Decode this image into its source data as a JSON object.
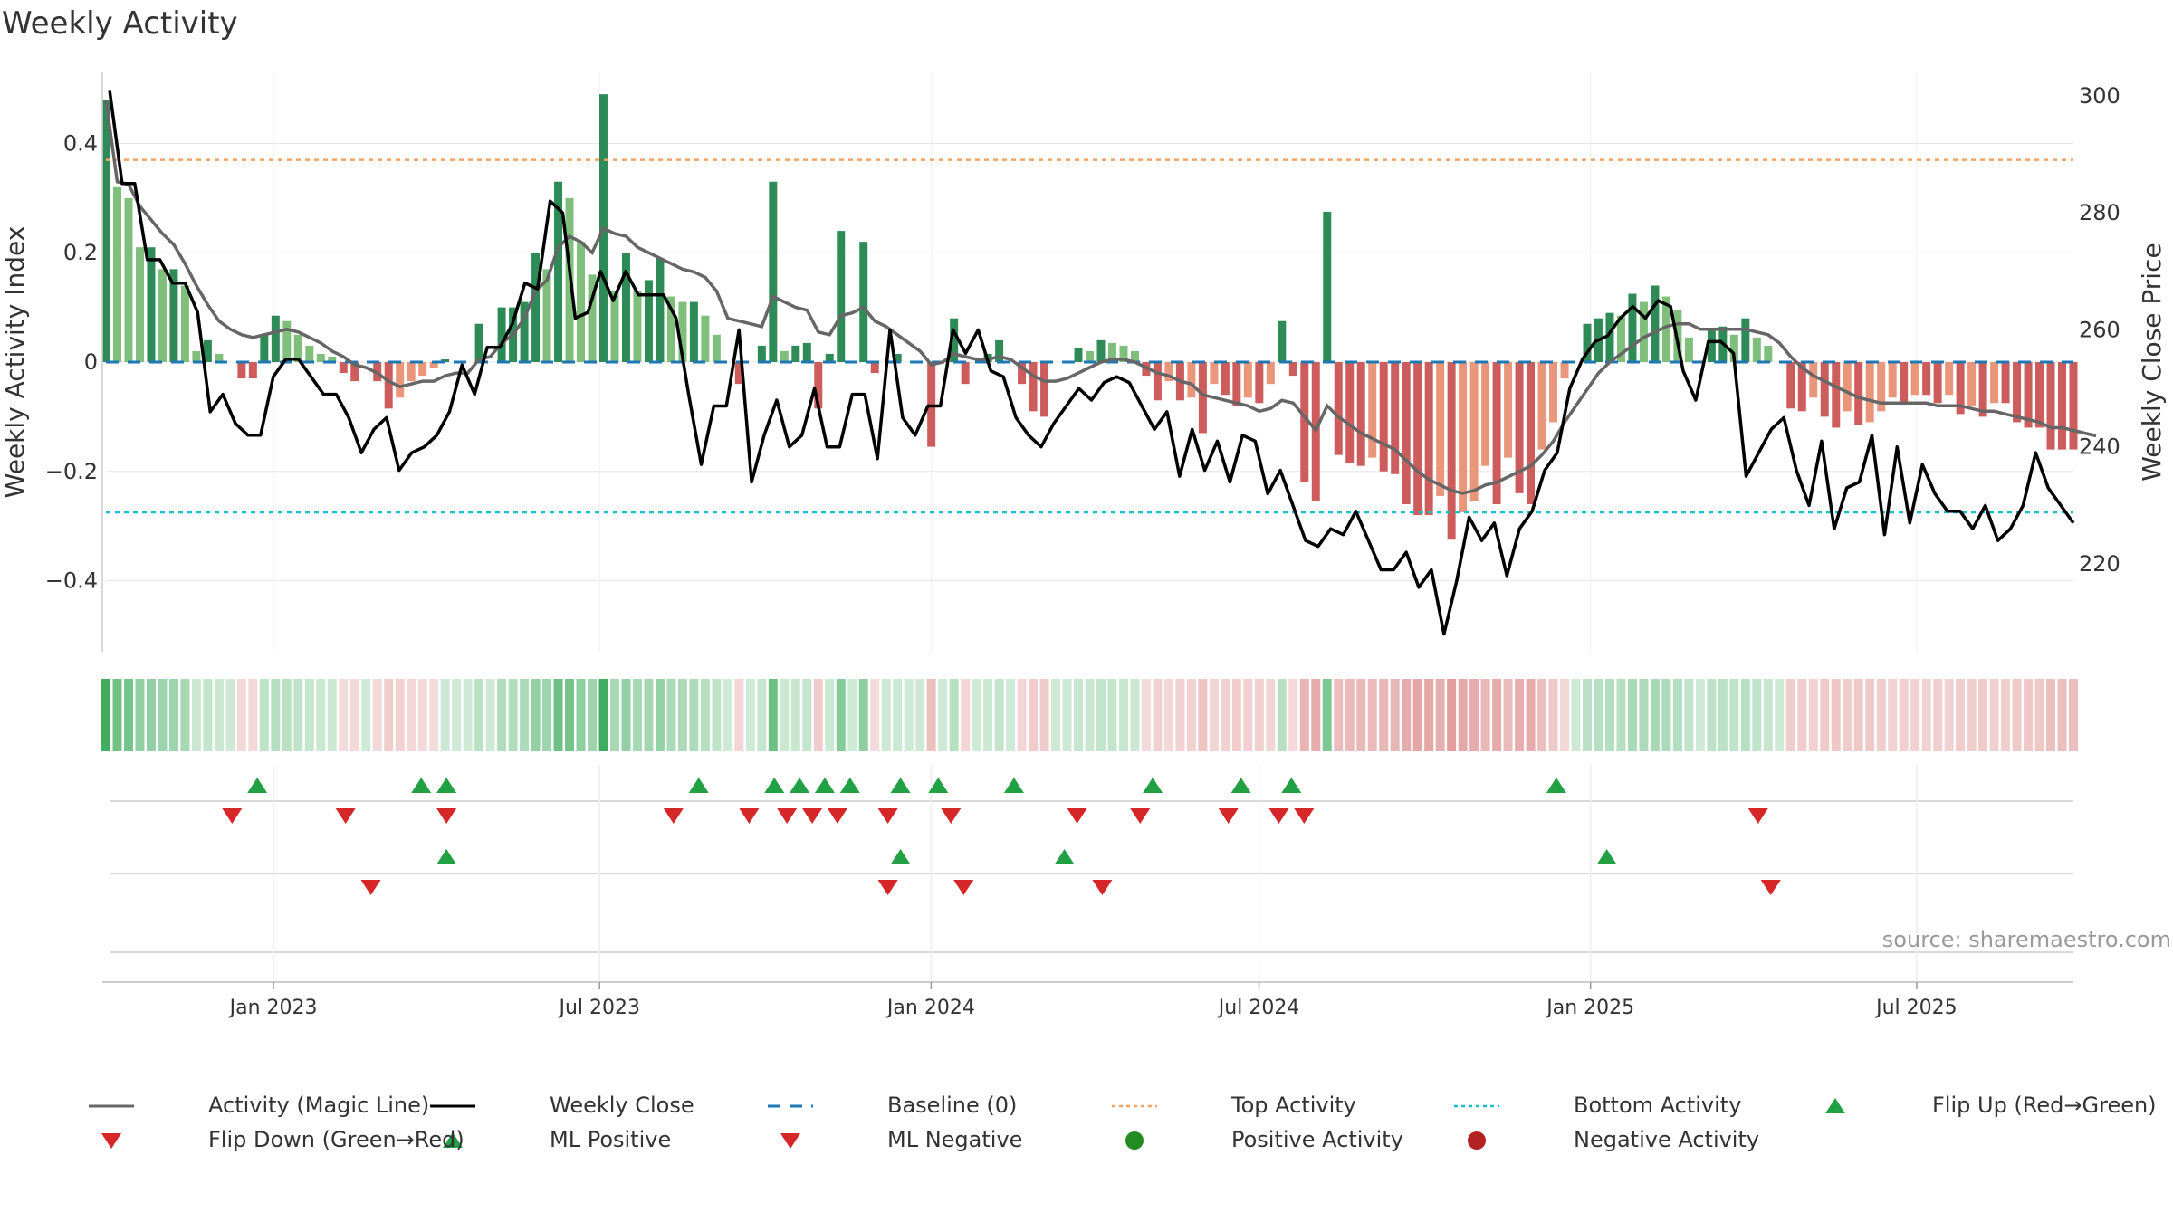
{
  "title": "Weekly Activity",
  "source": "source: sharemaestro.com",
  "colors": {
    "pos_dark": "#2e8b57",
    "pos_light": "#7fbf7b",
    "neg_dark": "#cd5c5c",
    "neg_light": "#e9967a",
    "magic": "#666666",
    "close": "#000000",
    "baseline": "#1f77b4",
    "top": "#f4a460",
    "bottom": "#17becf",
    "up": "#22a044",
    "down": "#d62728",
    "grid": "#e6e6e6",
    "axis": "#cccccc"
  },
  "legend": [
    {
      "label": "Activity (Magic Line)",
      "marker": "line-gray"
    },
    {
      "label": "Weekly Close",
      "marker": "line-black"
    },
    {
      "label": "Baseline (0)",
      "marker": "dash-blue"
    },
    {
      "label": "Top Activity",
      "marker": "dot-orange"
    },
    {
      "label": "Bottom Activity",
      "marker": "dot-cyan"
    },
    {
      "label": "Flip Up (Red→Green)",
      "marker": "tri-up-green"
    },
    {
      "label": "Flip Down (Green→Red)",
      "marker": "tri-down-red"
    },
    {
      "label": "ML Positive",
      "marker": "tri-up-green"
    },
    {
      "label": "ML Negative",
      "marker": "tri-down-red"
    },
    {
      "label": "Positive Activity",
      "marker": "circle-green"
    },
    {
      "label": "Negative Activity",
      "marker": "circle-red"
    }
  ],
  "chart_data": {
    "type": "bar",
    "title": "Weekly Activity",
    "ylabel": "Weekly Activity Index",
    "y2label": "Weekly Close Price",
    "ylim": [
      -0.53,
      0.53
    ],
    "y2lim": [
      205,
      304
    ],
    "yticks": [
      0.4,
      0.2,
      0,
      -0.2,
      -0.4
    ],
    "ytick_labels": [
      "0.4",
      "0.2",
      "0",
      "−0.2",
      "−0.4"
    ],
    "y2ticks": [
      300,
      280,
      260,
      240,
      220
    ],
    "x_start": "2022-09-30",
    "x_end": "2025-09-26",
    "x_ticks": [
      "2023-01-01",
      "2023-07-01",
      "2024-01-01",
      "2024-07-01",
      "2025-01-01",
      "2025-07-01"
    ],
    "x_tick_labels": [
      "Jan 2023",
      "Jul 2023",
      "Jan 2024",
      "Jul 2024",
      "Jan 2025",
      "Jul 2025"
    ],
    "top_activity": 0.37,
    "bottom_activity": -0.275,
    "activity": [
      0.48,
      0.32,
      0.3,
      0.21,
      0.21,
      0.17,
      0.17,
      0.14,
      0.02,
      0.04,
      0.015,
      0,
      -0.03,
      -0.03,
      0.05,
      0.085,
      0.075,
      0.05,
      0.03,
      0.015,
      0.01,
      -0.02,
      -0.035,
      0,
      -0.035,
      -0.085,
      -0.065,
      -0.035,
      -0.025,
      -0.01,
      0.005,
      0,
      0,
      0.07,
      0,
      0.1,
      0.1,
      0.11,
      0.2,
      0.17,
      0.33,
      0.3,
      0.22,
      0.16,
      0.49,
      0.13,
      0.2,
      0.13,
      0.15,
      0.19,
      0.12,
      0.11,
      0.11,
      0.085,
      0.05,
      0,
      -0.04,
      0,
      0.03,
      0.33,
      0.02,
      0.03,
      0.035,
      -0.085,
      0.015,
      0.24,
      0,
      0.22,
      -0.02,
      0,
      0.015,
      0,
      0,
      -0.155,
      0,
      0.08,
      -0.04,
      0,
      0.015,
      0.04,
      0,
      -0.04,
      -0.09,
      -0.1,
      0,
      0,
      0.025,
      0.02,
      0.04,
      0.035,
      0.03,
      0.02,
      -0.025,
      -0.07,
      -0.035,
      -0.07,
      -0.065,
      -0.13,
      -0.04,
      -0.06,
      -0.08,
      -0.065,
      -0.075,
      -0.04,
      0.075,
      -0.025,
      -0.22,
      -0.255,
      0.275,
      -0.17,
      -0.185,
      -0.19,
      -0.175,
      -0.2,
      -0.205,
      -0.26,
      -0.28,
      -0.28,
      -0.245,
      -0.325,
      -0.275,
      -0.255,
      -0.19,
      -0.26,
      -0.175,
      -0.24,
      -0.26,
      -0.16,
      -0.11,
      -0.03,
      0,
      0.07,
      0.08,
      0.09,
      0.085,
      0.125,
      0.11,
      0.14,
      0.12,
      0.095,
      0.045,
      0,
      0.06,
      0.065,
      0.05,
      0.08,
      0.045,
      0.03,
      0,
      -0.085,
      -0.09,
      -0.065,
      -0.1,
      -0.12,
      -0.09,
      -0.115,
      -0.11,
      -0.09,
      -0.065,
      -0.075,
      -0.06,
      -0.06,
      -0.075,
      -0.06,
      -0.095,
      -0.08,
      -0.1,
      -0.075,
      -0.075,
      -0.11,
      -0.12,
      -0.12,
      -0.16,
      -0.16,
      -0.16
    ],
    "magic_line": [
      0.48,
      0.33,
      0.325,
      0.285,
      0.26,
      0.235,
      0.215,
      0.18,
      0.14,
      0.105,
      0.075,
      0.06,
      0.05,
      0.045,
      0.05,
      0.055,
      0.06,
      0.055,
      0.045,
      0.035,
      0.02,
      0.01,
      -0.005,
      -0.01,
      -0.02,
      -0.035,
      -0.045,
      -0.04,
      -0.035,
      -0.035,
      -0.025,
      -0.02,
      -0.02,
      0.005,
      0.01,
      0.035,
      0.05,
      0.08,
      0.13,
      0.15,
      0.21,
      0.23,
      0.22,
      0.2,
      0.245,
      0.235,
      0.23,
      0.21,
      0.2,
      0.19,
      0.18,
      0.17,
      0.165,
      0.155,
      0.13,
      0.08,
      0.075,
      0.07,
      0.065,
      0.12,
      0.11,
      0.1,
      0.095,
      0.055,
      0.05,
      0.085,
      0.09,
      0.1,
      0.075,
      0.065,
      0.05,
      0.035,
      0.02,
      -0.005,
      0,
      0.015,
      0.01,
      0.005,
      0.005,
      0.01,
      0.005,
      -0.01,
      -0.025,
      -0.035,
      -0.035,
      -0.03,
      -0.02,
      -0.01,
      0,
      0.005,
      0.005,
      0,
      -0.01,
      -0.02,
      -0.025,
      -0.035,
      -0.04,
      -0.06,
      -0.065,
      -0.07,
      -0.075,
      -0.08,
      -0.09,
      -0.085,
      -0.07,
      -0.075,
      -0.1,
      -0.125,
      -0.08,
      -0.1,
      -0.115,
      -0.13,
      -0.14,
      -0.15,
      -0.16,
      -0.18,
      -0.2,
      -0.215,
      -0.225,
      -0.235,
      -0.24,
      -0.235,
      -0.225,
      -0.22,
      -0.21,
      -0.2,
      -0.19,
      -0.17,
      -0.145,
      -0.11,
      -0.08,
      -0.05,
      -0.02,
      0,
      0.015,
      0.03,
      0.045,
      0.055,
      0.065,
      0.07,
      0.07,
      0.06,
      0.06,
      0.06,
      0.06,
      0.06,
      0.055,
      0.05,
      0.035,
      0.01,
      -0.01,
      -0.025,
      -0.035,
      -0.045,
      -0.055,
      -0.065,
      -0.07,
      -0.075,
      -0.075,
      -0.075,
      -0.075,
      -0.075,
      -0.08,
      -0.08,
      -0.08,
      -0.085,
      -0.09,
      -0.09,
      -0.095,
      -0.1,
      -0.105,
      -0.11,
      -0.12,
      -0.12,
      -0.125,
      -0.13,
      -0.135
    ],
    "weekly_close": [
      301,
      285,
      285,
      272,
      272,
      268,
      268,
      263,
      246,
      249,
      244,
      242,
      242,
      252,
      255,
      255,
      252,
      249,
      249,
      245,
      239,
      243,
      245,
      236,
      239,
      240,
      242,
      246,
      254,
      249,
      257,
      257,
      261,
      268,
      267,
      282,
      280,
      262,
      263,
      270,
      265,
      270,
      266,
      266,
      266,
      262,
      249,
      237,
      247,
      247,
      260,
      234,
      242,
      248,
      240,
      242,
      250,
      240,
      240,
      249,
      249,
      238,
      260,
      245,
      242,
      247,
      247,
      260,
      256,
      260,
      253,
      252,
      245,
      242,
      240,
      244,
      247,
      250,
      248,
      251,
      252,
      251,
      247,
      243,
      246,
      235,
      243,
      236,
      241,
      234,
      242,
      241,
      232,
      236,
      230,
      224,
      223,
      226,
      225,
      229,
      224,
      219,
      219,
      222,
      216,
      219,
      208,
      217,
      228,
      224,
      227,
      218,
      226,
      229,
      236,
      239,
      250,
      255,
      258,
      259,
      262,
      264,
      262,
      265,
      264,
      253,
      248,
      258,
      258,
      256,
      235,
      239,
      243,
      245,
      236,
      230,
      241,
      226,
      233,
      234,
      242,
      225,
      240,
      227,
      237,
      232,
      229,
      229,
      226,
      230,
      224,
      226,
      230,
      239,
      233,
      230,
      227
    ],
    "close_index_offset": 7,
    "flip_up": [
      "2022-12-23",
      "2023-03-24",
      "2023-04-07",
      "2023-08-25",
      "2023-10-06",
      "2023-10-20",
      "2023-11-03",
      "2023-11-17",
      "2023-12-15",
      "2024-01-05",
      "2024-02-16",
      "2024-05-03",
      "2024-06-21",
      "2024-07-19",
      "2024-12-13"
    ],
    "flip_down": [
      "2022-12-09",
      "2023-02-10",
      "2023-04-07",
      "2023-08-11",
      "2023-09-22",
      "2023-10-13",
      "2023-10-27",
      "2023-11-10",
      "2023-12-08",
      "2024-01-12",
      "2024-03-22",
      "2024-04-26",
      "2024-06-14",
      "2024-07-12",
      "2024-07-26",
      "2025-04-04"
    ],
    "ml_positive": [
      "2023-04-07",
      "2023-12-15",
      "2024-03-15",
      "2025-01-10"
    ],
    "ml_negative": [
      "2023-02-24",
      "2023-12-08",
      "2024-01-19",
      "2024-04-05",
      "2025-04-11"
    ]
  }
}
